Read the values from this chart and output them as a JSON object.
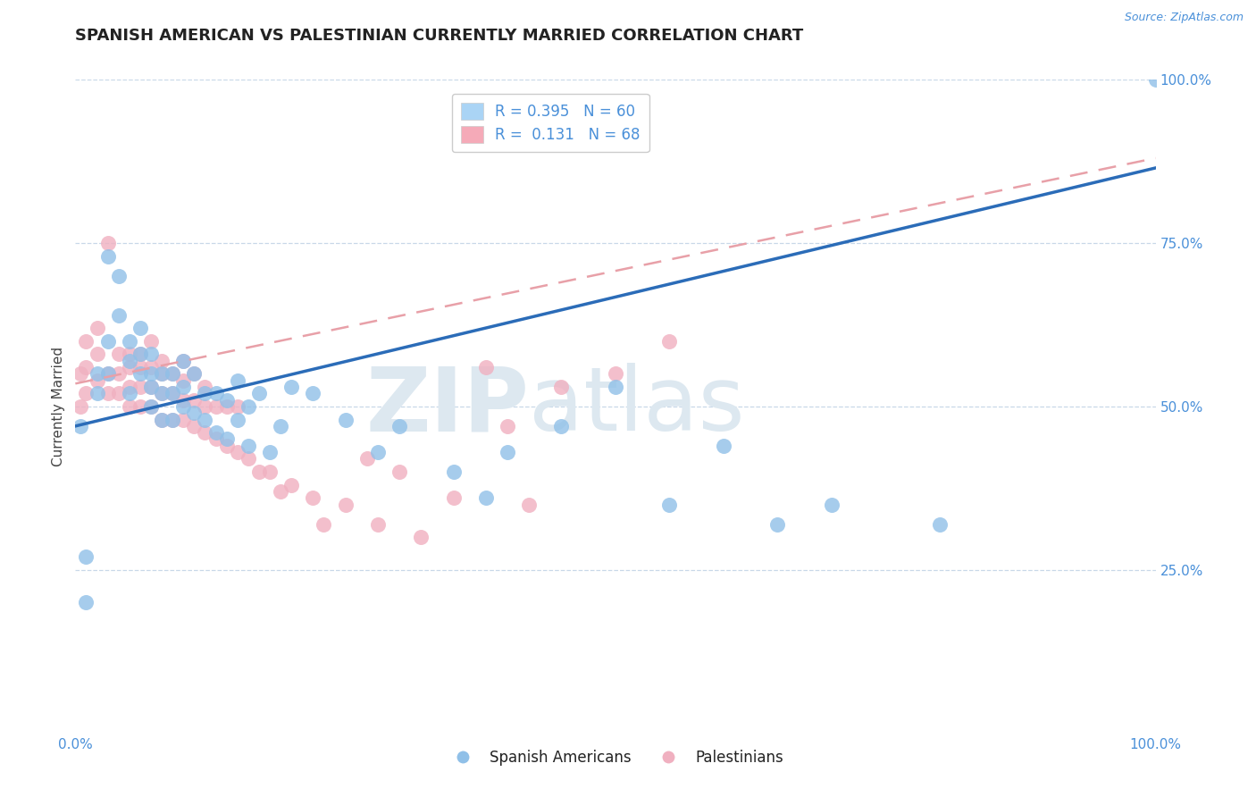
{
  "title": "SPANISH AMERICAN VS PALESTINIAN CURRENTLY MARRIED CORRELATION CHART",
  "source": "Source: ZipAtlas.com",
  "ylabel": "Currently Married",
  "xlim": [
    0,
    1
  ],
  "ylim": [
    0,
    1
  ],
  "legend_items": [
    {
      "label": "R = 0.395   N = 60",
      "color": "#aad4f5"
    },
    {
      "label": "R =  0.131   N = 68",
      "color": "#f5aab8"
    }
  ],
  "blue_scatter_x": [
    0.005,
    0.01,
    0.01,
    0.02,
    0.02,
    0.03,
    0.03,
    0.03,
    0.04,
    0.04,
    0.05,
    0.05,
    0.05,
    0.06,
    0.06,
    0.06,
    0.07,
    0.07,
    0.07,
    0.07,
    0.08,
    0.08,
    0.08,
    0.09,
    0.09,
    0.09,
    0.1,
    0.1,
    0.1,
    0.11,
    0.11,
    0.12,
    0.12,
    0.13,
    0.13,
    0.14,
    0.14,
    0.15,
    0.15,
    0.16,
    0.16,
    0.17,
    0.18,
    0.19,
    0.2,
    0.22,
    0.25,
    0.28,
    0.3,
    0.35,
    0.38,
    0.4,
    0.45,
    0.5,
    0.55,
    0.6,
    0.65,
    0.7,
    0.8,
    1.0
  ],
  "blue_scatter_y": [
    0.47,
    0.2,
    0.27,
    0.52,
    0.55,
    0.6,
    0.55,
    0.73,
    0.64,
    0.7,
    0.52,
    0.57,
    0.6,
    0.55,
    0.58,
    0.62,
    0.5,
    0.53,
    0.55,
    0.58,
    0.48,
    0.52,
    0.55,
    0.48,
    0.52,
    0.55,
    0.5,
    0.53,
    0.57,
    0.49,
    0.55,
    0.48,
    0.52,
    0.46,
    0.52,
    0.45,
    0.51,
    0.48,
    0.54,
    0.44,
    0.5,
    0.52,
    0.43,
    0.47,
    0.53,
    0.52,
    0.48,
    0.43,
    0.47,
    0.4,
    0.36,
    0.43,
    0.47,
    0.53,
    0.35,
    0.44,
    0.32,
    0.35,
    0.32,
    1.0
  ],
  "pink_scatter_x": [
    0.005,
    0.005,
    0.01,
    0.01,
    0.01,
    0.02,
    0.02,
    0.02,
    0.03,
    0.03,
    0.03,
    0.04,
    0.04,
    0.04,
    0.05,
    0.05,
    0.05,
    0.05,
    0.06,
    0.06,
    0.06,
    0.06,
    0.07,
    0.07,
    0.07,
    0.07,
    0.08,
    0.08,
    0.08,
    0.08,
    0.09,
    0.09,
    0.09,
    0.1,
    0.1,
    0.1,
    0.1,
    0.11,
    0.11,
    0.11,
    0.12,
    0.12,
    0.12,
    0.13,
    0.13,
    0.14,
    0.14,
    0.15,
    0.15,
    0.16,
    0.17,
    0.18,
    0.19,
    0.2,
    0.22,
    0.23,
    0.25,
    0.27,
    0.28,
    0.3,
    0.32,
    0.35,
    0.38,
    0.4,
    0.42,
    0.45,
    0.5,
    0.55
  ],
  "pink_scatter_y": [
    0.5,
    0.55,
    0.52,
    0.56,
    0.6,
    0.54,
    0.58,
    0.62,
    0.52,
    0.55,
    0.75,
    0.52,
    0.55,
    0.58,
    0.5,
    0.53,
    0.56,
    0.58,
    0.5,
    0.53,
    0.56,
    0.58,
    0.5,
    0.53,
    0.56,
    0.6,
    0.48,
    0.52,
    0.55,
    0.57,
    0.48,
    0.52,
    0.55,
    0.48,
    0.51,
    0.54,
    0.57,
    0.47,
    0.51,
    0.55,
    0.46,
    0.5,
    0.53,
    0.45,
    0.5,
    0.44,
    0.5,
    0.43,
    0.5,
    0.42,
    0.4,
    0.4,
    0.37,
    0.38,
    0.36,
    0.32,
    0.35,
    0.42,
    0.32,
    0.4,
    0.3,
    0.36,
    0.56,
    0.47,
    0.35,
    0.53,
    0.55,
    0.6
  ],
  "blue_line_x0": 0.0,
  "blue_line_y0": 0.47,
  "blue_line_x1": 1.0,
  "blue_line_y1": 0.865,
  "pink_line_x0": 0.0,
  "pink_line_y0": 0.535,
  "pink_line_x1": 1.0,
  "pink_line_y1": 0.88,
  "blue_color": "#2b6cb8",
  "pink_color": "#e8a0a8",
  "blue_scatter_color": "#90c0e8",
  "pink_scatter_color": "#f0b0c0",
  "grid_color": "#c8d8e8",
  "background_color": "#ffffff",
  "watermark_zip": "ZIP",
  "watermark_atlas": "atlas",
  "watermark_color": "#dde8f0",
  "right_tick_color": "#4a90d9",
  "title_fontsize": 13,
  "axis_label_fontsize": 11,
  "tick_fontsize": 11
}
